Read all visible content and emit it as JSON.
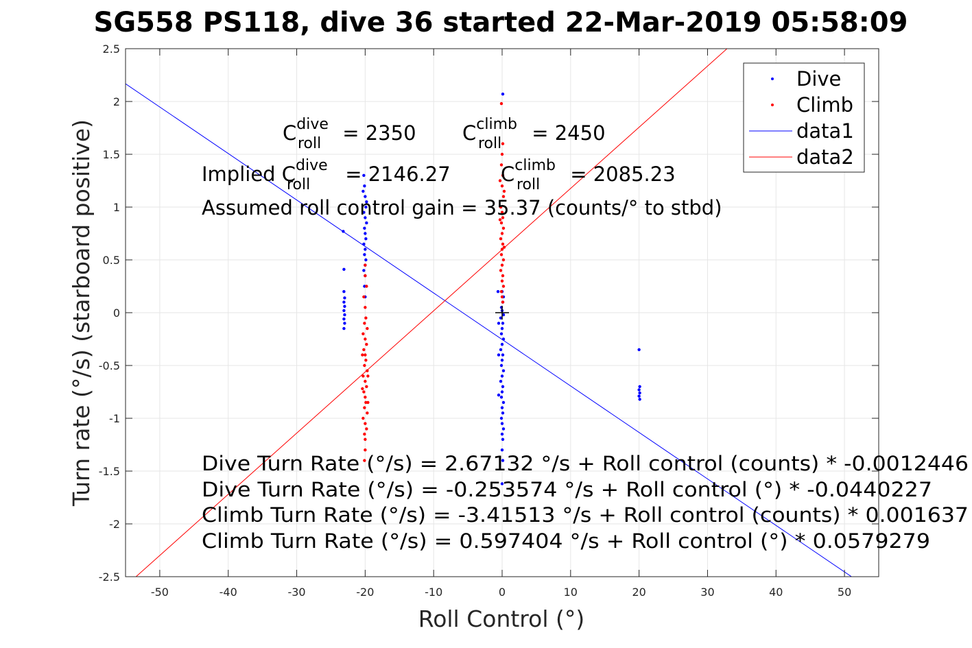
{
  "title": "SG558 PS118, dive 36 started 22-Mar-2019 05:58:09",
  "chart_data": {
    "type": "scatter",
    "title": "SG558 PS118, dive 36 started 22-Mar-2019 05:58:09",
    "xlabel": "Roll Control (°)",
    "ylabel": "Turn rate (°/s) (starboard positive)",
    "xlim": [
      -55,
      55
    ],
    "ylim": [
      -2.5,
      2.5
    ],
    "x_ticks": [
      -50,
      -40,
      -30,
      -20,
      -10,
      0,
      10,
      20,
      30,
      40,
      50
    ],
    "y_ticks": [
      -2.5,
      -2,
      -1.5,
      -1,
      -0.5,
      0,
      0.5,
      1,
      1.5,
      2,
      2.5
    ],
    "x_tick_labels": [
      "-50",
      "-40",
      "-30",
      "-20",
      "-10",
      "0",
      "10",
      "20",
      "30",
      "40",
      "50"
    ],
    "y_tick_labels": [
      "-2.5",
      "-2",
      "-1.5",
      "-1",
      "-0.5",
      "0",
      "0.5",
      "1",
      "1.5",
      "2",
      "2.5"
    ],
    "grid": true,
    "legend_position": "top-right",
    "series": [
      {
        "name": "Dive",
        "kind": "points",
        "color": "#0000ff",
        "points": [
          [
            -20.2,
            1.3
          ],
          [
            -20.1,
            1.2
          ],
          [
            -20.0,
            1.1
          ],
          [
            -19.9,
            1.0
          ],
          [
            -20.2,
            0.95
          ],
          [
            -20.0,
            0.9
          ],
          [
            -19.8,
            0.85
          ],
          [
            -20.1,
            0.8
          ],
          [
            -20.0,
            0.75
          ],
          [
            -19.9,
            0.7
          ],
          [
            -20.2,
            0.65
          ],
          [
            -20.0,
            0.6
          ],
          [
            -20.1,
            0.55
          ],
          [
            -19.9,
            0.5
          ],
          [
            -20.0,
            0.45
          ],
          [
            -20.2,
            0.4
          ],
          [
            -20.0,
            0.35
          ],
          [
            -20.1,
            0.25
          ],
          [
            -20.0,
            0.15
          ],
          [
            -19.8,
            1.05
          ],
          [
            -20.3,
            1.15
          ],
          [
            -23.2,
            0.77
          ],
          [
            -23.1,
            0.41
          ],
          [
            -23.1,
            0.2
          ],
          [
            -23.0,
            0.14
          ],
          [
            -23.1,
            0.1
          ],
          [
            -23.0,
            0.06
          ],
          [
            -23.1,
            0.02
          ],
          [
            -23.0,
            -0.02
          ],
          [
            -23.1,
            -0.06
          ],
          [
            -23.0,
            -0.1
          ],
          [
            -23.1,
            -0.15
          ],
          [
            0.1,
            2.07
          ],
          [
            0.0,
            0.2
          ],
          [
            0.2,
            0.15
          ],
          [
            0.1,
            0.1
          ],
          [
            -0.1,
            0.05
          ],
          [
            0.0,
            0.02
          ],
          [
            0.2,
            -0.02
          ],
          [
            -0.2,
            -0.05
          ],
          [
            0.1,
            -0.1
          ],
          [
            0.0,
            -0.15
          ],
          [
            -0.1,
            -0.2
          ],
          [
            0.2,
            -0.25
          ],
          [
            0.0,
            -0.3
          ],
          [
            -0.2,
            -0.35
          ],
          [
            0.1,
            -0.4
          ],
          [
            0.0,
            -0.45
          ],
          [
            -0.1,
            -0.5
          ],
          [
            0.2,
            -0.55
          ],
          [
            0.0,
            -0.6
          ],
          [
            -0.2,
            -0.65
          ],
          [
            0.1,
            -0.7
          ],
          [
            0.0,
            -0.75
          ],
          [
            -0.1,
            -0.8
          ],
          [
            0.2,
            -0.85
          ],
          [
            0.0,
            -0.9
          ],
          [
            0.1,
            -0.95
          ],
          [
            -0.1,
            -1.0
          ],
          [
            0.0,
            -1.05
          ],
          [
            0.2,
            -1.1
          ],
          [
            0.0,
            -1.15
          ],
          [
            0.1,
            -1.2
          ],
          [
            0.0,
            -1.3
          ],
          [
            0.1,
            -1.4
          ],
          [
            0.0,
            -1.62
          ],
          [
            -0.6,
            0.2
          ],
          [
            -0.5,
            -0.1
          ],
          [
            -0.5,
            -0.4
          ],
          [
            -0.5,
            -0.78
          ],
          [
            20.0,
            -0.35
          ],
          [
            20.1,
            -0.7
          ],
          [
            20.0,
            -0.73
          ],
          [
            20.1,
            -0.76
          ],
          [
            20.0,
            -0.79
          ],
          [
            20.1,
            -0.82
          ]
        ]
      },
      {
        "name": "Climb",
        "kind": "points",
        "color": "#ff0000",
        "points": [
          [
            -20.0,
            0.35
          ],
          [
            -19.8,
            0.25
          ],
          [
            -20.2,
            0.15
          ],
          [
            -20.0,
            0.05
          ],
          [
            -19.9,
            -0.05
          ],
          [
            -20.1,
            -0.1
          ],
          [
            -19.7,
            -0.15
          ],
          [
            -20.3,
            -0.2
          ],
          [
            -20.0,
            -0.25
          ],
          [
            -19.8,
            -0.3
          ],
          [
            -20.2,
            -0.35
          ],
          [
            -20.0,
            -0.4
          ],
          [
            -19.9,
            -0.45
          ],
          [
            -20.1,
            -0.5
          ],
          [
            -19.7,
            -0.55
          ],
          [
            -20.3,
            -0.6
          ],
          [
            -20.0,
            -0.65
          ],
          [
            -19.8,
            -0.7
          ],
          [
            -20.2,
            -0.75
          ],
          [
            -20.0,
            -0.8
          ],
          [
            -19.9,
            -0.85
          ],
          [
            -20.1,
            -0.9
          ],
          [
            -19.7,
            -0.95
          ],
          [
            -20.3,
            -1.0
          ],
          [
            -20.0,
            -1.05
          ],
          [
            -19.8,
            -1.1
          ],
          [
            -20.1,
            -1.15
          ],
          [
            -20.0,
            -1.2
          ],
          [
            -20.0,
            -1.3
          ],
          [
            -20.1,
            -1.4
          ],
          [
            -20.0,
            0.45
          ],
          [
            -19.6,
            -0.6
          ],
          [
            -20.4,
            -0.72
          ],
          [
            -19.6,
            -0.85
          ],
          [
            -20.4,
            -0.4
          ],
          [
            -0.1,
            1.98
          ],
          [
            0.1,
            1.6
          ],
          [
            0.0,
            1.5
          ],
          [
            -0.1,
            1.4
          ],
          [
            0.1,
            1.3
          ],
          [
            0.0,
            1.2
          ],
          [
            0.2,
            1.1
          ],
          [
            -0.2,
            1.0
          ],
          [
            0.0,
            0.95
          ],
          [
            0.1,
            0.9
          ],
          [
            -0.1,
            0.85
          ],
          [
            0.2,
            0.8
          ],
          [
            0.0,
            0.75
          ],
          [
            -0.2,
            0.7
          ],
          [
            0.1,
            0.65
          ],
          [
            0.0,
            0.6
          ],
          [
            -0.1,
            0.55
          ],
          [
            0.2,
            0.5
          ],
          [
            0.0,
            0.45
          ],
          [
            -0.2,
            0.4
          ],
          [
            0.1,
            0.35
          ],
          [
            0.0,
            0.3
          ],
          [
            0.2,
            0.25
          ],
          [
            -0.1,
            0.2
          ],
          [
            0.0,
            0.15
          ],
          [
            0.1,
            0.1
          ],
          [
            -0.3,
            1.25
          ],
          [
            0.3,
            1.15
          ],
          [
            -0.3,
            0.88
          ],
          [
            0.3,
            0.62
          ]
        ]
      },
      {
        "name": "data1",
        "kind": "line",
        "color": "#0000ff",
        "x": [
          -55,
          55
        ],
        "y": [
          2.167674,
          -2.674823
        ]
      },
      {
        "name": "data2",
        "kind": "line",
        "color": "#ff0000",
        "x": [
          -55,
          55
        ],
        "y": [
          -2.588631,
          3.783439
        ]
      }
    ],
    "marker": {
      "x": 0,
      "y": 0,
      "symbol": "+"
    },
    "annotations": {
      "c_dive": {
        "base": "C",
        "sup": "dive",
        "sub": "roll",
        "rest": " = 2350"
      },
      "c_climb": {
        "base": "C",
        "sup": "climb",
        "sub": "roll",
        "rest": " = 2450"
      },
      "implied_dive": {
        "prefix": "Implied C",
        "sup": "dive",
        "sub": "roll",
        "rest": " = 2146.27"
      },
      "implied_climb": {
        "base": "C",
        "sup": "climb",
        "sub": "roll",
        "rest": " = 2085.23"
      },
      "gain": "Assumed roll control gain = 35.37 (counts/° to stbd)",
      "eq1": "Dive Turn Rate (°/s) = 2.67132 °/s + Roll control (counts) * -0.0012446",
      "eq2": "Dive Turn Rate (°/s) = -0.253574 °/s + Roll control (°) * -0.0440227",
      "eq3": "Climb Turn Rate (°/s) = -3.41513 °/s + Roll control (counts) * 0.001637",
      "eq4": "Climb Turn Rate (°/s) = 0.597404 °/s + Roll control (°) * 0.0579279"
    }
  }
}
